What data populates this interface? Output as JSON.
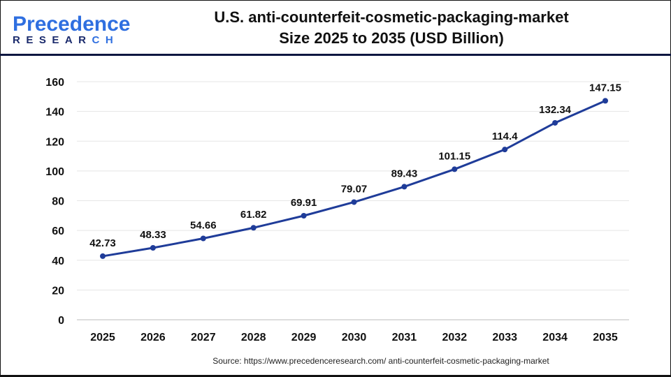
{
  "header": {
    "logo": {
      "line1_a": "P",
      "line1_b": "recedence",
      "line2_a": "RESEAR",
      "line2_b": "CH"
    },
    "title_line1": "U.S. anti-counterfeit-cosmetic-packaging-market",
    "title_line2": "Size 2025 to 2035  (USD Billion)"
  },
  "source": "Source: https://www.precedenceresearch.com/ anti-counterfeit-cosmetic-packaging-market",
  "colors": {
    "line": "#1f3c99",
    "marker": "#1f3c99",
    "grid": "#e5e5e5",
    "brand_dark": "#1a2a6c",
    "brand_light": "#2f6fe0"
  },
  "chart_data": {
    "type": "line",
    "title": "U.S. anti-counterfeit-cosmetic-packaging-market Size 2025 to 2035  (USD Billion)",
    "categories": [
      "2025",
      "2026",
      "2027",
      "2028",
      "2029",
      "2030",
      "2031",
      "2032",
      "2033",
      "2034",
      "2035"
    ],
    "values": [
      42.73,
      48.33,
      54.66,
      61.82,
      69.91,
      79.07,
      89.43,
      101.15,
      114.4,
      132.34,
      147.15
    ],
    "data_labels": [
      "42.73",
      "48.33",
      "54.66",
      "61.82",
      "69.91",
      "79.07",
      "89.43",
      "101.15",
      "114.4",
      "132.34",
      "147.15"
    ],
    "yticks": [
      "0",
      "20",
      "40",
      "60",
      "80",
      "100",
      "120",
      "140",
      "160"
    ],
    "ylim": [
      0,
      160
    ],
    "grid": true,
    "legend": "none"
  }
}
